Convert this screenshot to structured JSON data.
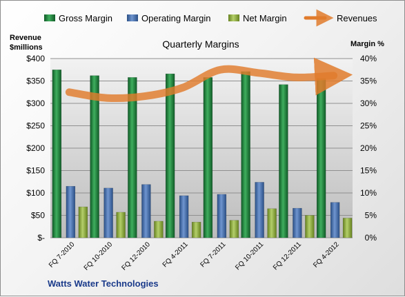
{
  "chart_data": {
    "type": "bar",
    "title": "Quarterly Margins",
    "company": "Watts Water Technologies",
    "left_axis_label": [
      "Revenue",
      "$millions"
    ],
    "right_axis_label": "Margin %",
    "categories": [
      "FQ 7-2010",
      "FQ 10-2010",
      "FQ 12-2010",
      "FQ 4-2011",
      "FQ 7-2011",
      "FQ 10-2011",
      "FQ 12-2011",
      "FQ 4-2012"
    ],
    "left_ticks": [
      "$-",
      "$50",
      "$100",
      "$150",
      "$200",
      "$250",
      "$300",
      "$350",
      "$400"
    ],
    "right_ticks": [
      "0%",
      "5%",
      "10%",
      "15%",
      "20%",
      "25%",
      "30%",
      "35%",
      "40%"
    ],
    "ylim_left": [
      0,
      400
    ],
    "ylim_right": [
      0,
      40
    ],
    "grid": true,
    "legend_position": "top",
    "series": [
      {
        "name": "Gross Margin",
        "kind": "bar",
        "axis": "right",
        "color": "#1e7a3c",
        "values": [
          37.5,
          36.2,
          35.8,
          36.6,
          35.8,
          37.1,
          34.2,
          35.6
        ]
      },
      {
        "name": "Operating Margin",
        "kind": "bar",
        "axis": "right",
        "color": "#3f68a8",
        "values": [
          11.5,
          11.1,
          11.9,
          9.4,
          9.7,
          12.4,
          6.6,
          7.9
        ]
      },
      {
        "name": "Net Margin",
        "kind": "bar",
        "axis": "right",
        "color": "#8aa83a",
        "values": [
          6.9,
          5.7,
          3.7,
          3.5,
          3.9,
          6.5,
          5.0,
          4.4
        ]
      },
      {
        "name": "Revenues",
        "kind": "line",
        "axis": "left",
        "color": "#e07b2c",
        "values": [
          325,
          312,
          316,
          335,
          375,
          368,
          358,
          362
        ]
      }
    ]
  }
}
